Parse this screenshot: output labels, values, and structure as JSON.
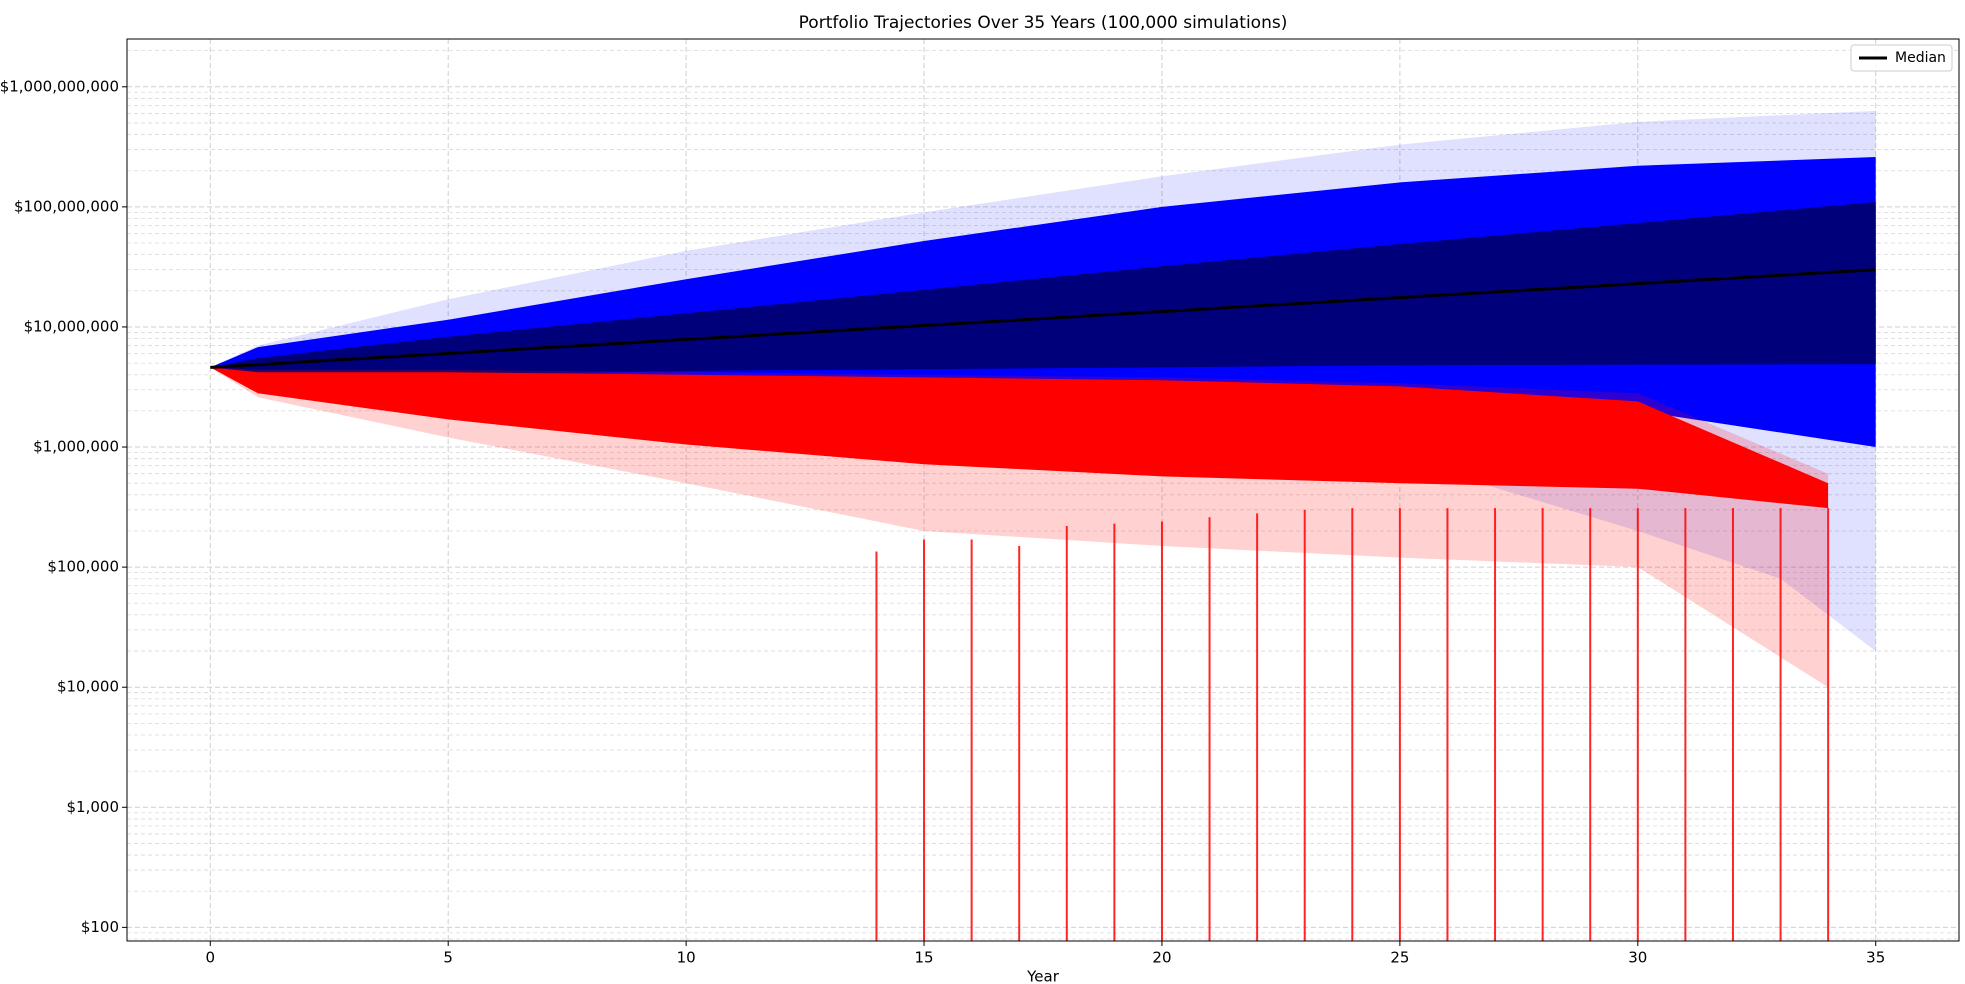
{
  "chart_data": {
    "type": "line",
    "title": "Portfolio Trajectories Over 35 Years (100,000 simulations)",
    "xlabel": "Year",
    "x": [
      0,
      1,
      2,
      3,
      4,
      5,
      6,
      7,
      8,
      9,
      10,
      11,
      12,
      13,
      14,
      15,
      16,
      17,
      18,
      19,
      20,
      21,
      22,
      23,
      24,
      25,
      26,
      27,
      28,
      29,
      30,
      31,
      32,
      33,
      34,
      35
    ],
    "series": [
      {
        "name": "Median",
        "color": "#000000",
        "values": [
          4600000,
          4850000,
          5130000,
          5410000,
          5700000,
          6010000,
          6350000,
          6700000,
          7060000,
          7450000,
          7870000,
          8300000,
          8750000,
          9230000,
          9750000,
          10280000,
          10840000,
          11430000,
          12080000,
          12740000,
          13430000,
          14160000,
          14960000,
          15780000,
          16630000,
          17540000,
          18540000,
          19540000,
          20610000,
          21730000,
          22960000,
          24210000,
          25530000,
          26920000,
          28440000,
          30000000
        ]
      }
    ],
    "bands": [
      {
        "color": "#0000ff",
        "opacity": 0.12,
        "x": [
          0,
          1,
          5,
          10,
          15,
          20,
          25,
          30,
          33,
          35
        ],
        "upper": [
          4600000,
          7000000,
          17000000,
          43000000,
          90000000,
          180000000,
          330000000,
          510000000,
          580000000,
          630000000
        ],
        "lower": [
          4600000,
          3000000,
          2000000,
          1500000,
          1200000,
          1000000,
          800000,
          200000,
          80000,
          20000
        ]
      },
      {
        "color": "#0000ff",
        "opacity": 1,
        "x": [
          0,
          1,
          5,
          10,
          15,
          20,
          25,
          30,
          35
        ],
        "upper": [
          4600000,
          6800000,
          11500000,
          25000000,
          52000000,
          100000000,
          160000000,
          220000000,
          260000000
        ],
        "lower": [
          4600000,
          3200000,
          2500000,
          2300000,
          2200000,
          2200000,
          2300000,
          2000000,
          1000000
        ]
      },
      {
        "color": "#00007a",
        "opacity": 1,
        "x": [
          0,
          1,
          5,
          10,
          20,
          25,
          35
        ],
        "upper": [
          4600000,
          5500000,
          8300000,
          13000000,
          32000000,
          49000000,
          110000000
        ],
        "lower": [
          4600000,
          3900000,
          4000000,
          4300000,
          4600000,
          4800000,
          4900000
        ]
      },
      {
        "color": "#ff0000",
        "opacity": 0.18,
        "x": [
          0,
          1,
          5,
          10,
          15,
          20,
          25,
          30,
          34
        ],
        "upper": [
          4600000,
          4400000,
          4400000,
          4200000,
          4000000,
          3800000,
          3400000,
          2800000,
          600000
        ],
        "lower": [
          4600000,
          2600000,
          1200000,
          500000,
          200000,
          150000,
          120000,
          100000,
          10000
        ]
      },
      {
        "color": "#ff0000",
        "opacity": 1,
        "x": [
          0,
          1,
          5,
          10,
          15,
          20,
          25,
          30,
          34
        ],
        "upper": [
          4600000,
          4200000,
          4200000,
          4000000,
          3800000,
          3600000,
          3200000,
          2400000,
          500000
        ],
        "lower": [
          4600000,
          2800000,
          1700000,
          1050000,
          720000,
          570000,
          500000,
          450000,
          310000
        ]
      }
    ],
    "spikes": {
      "color": "#ff0000",
      "x": [
        14,
        15,
        16,
        17,
        18,
        19,
        20,
        21,
        22,
        23,
        24,
        25,
        26,
        27,
        28,
        29,
        30,
        31,
        32,
        33,
        34
      ],
      "values": [
        135000,
        170000,
        170000,
        150000,
        220000,
        230000,
        240000,
        260000,
        280000,
        300000,
        310000,
        310000,
        310000,
        310000,
        310000,
        310000,
        310000,
        310000,
        310000,
        310000,
        310000
      ]
    },
    "xlim": [
      -1.75,
      36.75
    ],
    "ylim": [
      77,
      2500000000
    ],
    "xticks": [
      0,
      5,
      10,
      15,
      20,
      25,
      30,
      35
    ],
    "yticks": [
      {
        "value": 100,
        "label": "$100"
      },
      {
        "value": 1000,
        "label": "$1,000"
      },
      {
        "value": 10000,
        "label": "$10,000"
      },
      {
        "value": 100000,
        "label": "$100,000"
      },
      {
        "value": 1000000,
        "label": "$1,000,000"
      },
      {
        "value": 10000000,
        "label": "$10,000,000"
      },
      {
        "value": 100000000,
        "label": "$100,000,000"
      },
      {
        "value": 1000000000,
        "label": "$1,000,000,000"
      }
    ],
    "log_y": true,
    "grid": true,
    "minor_grid": true,
    "legend": "upper right"
  }
}
